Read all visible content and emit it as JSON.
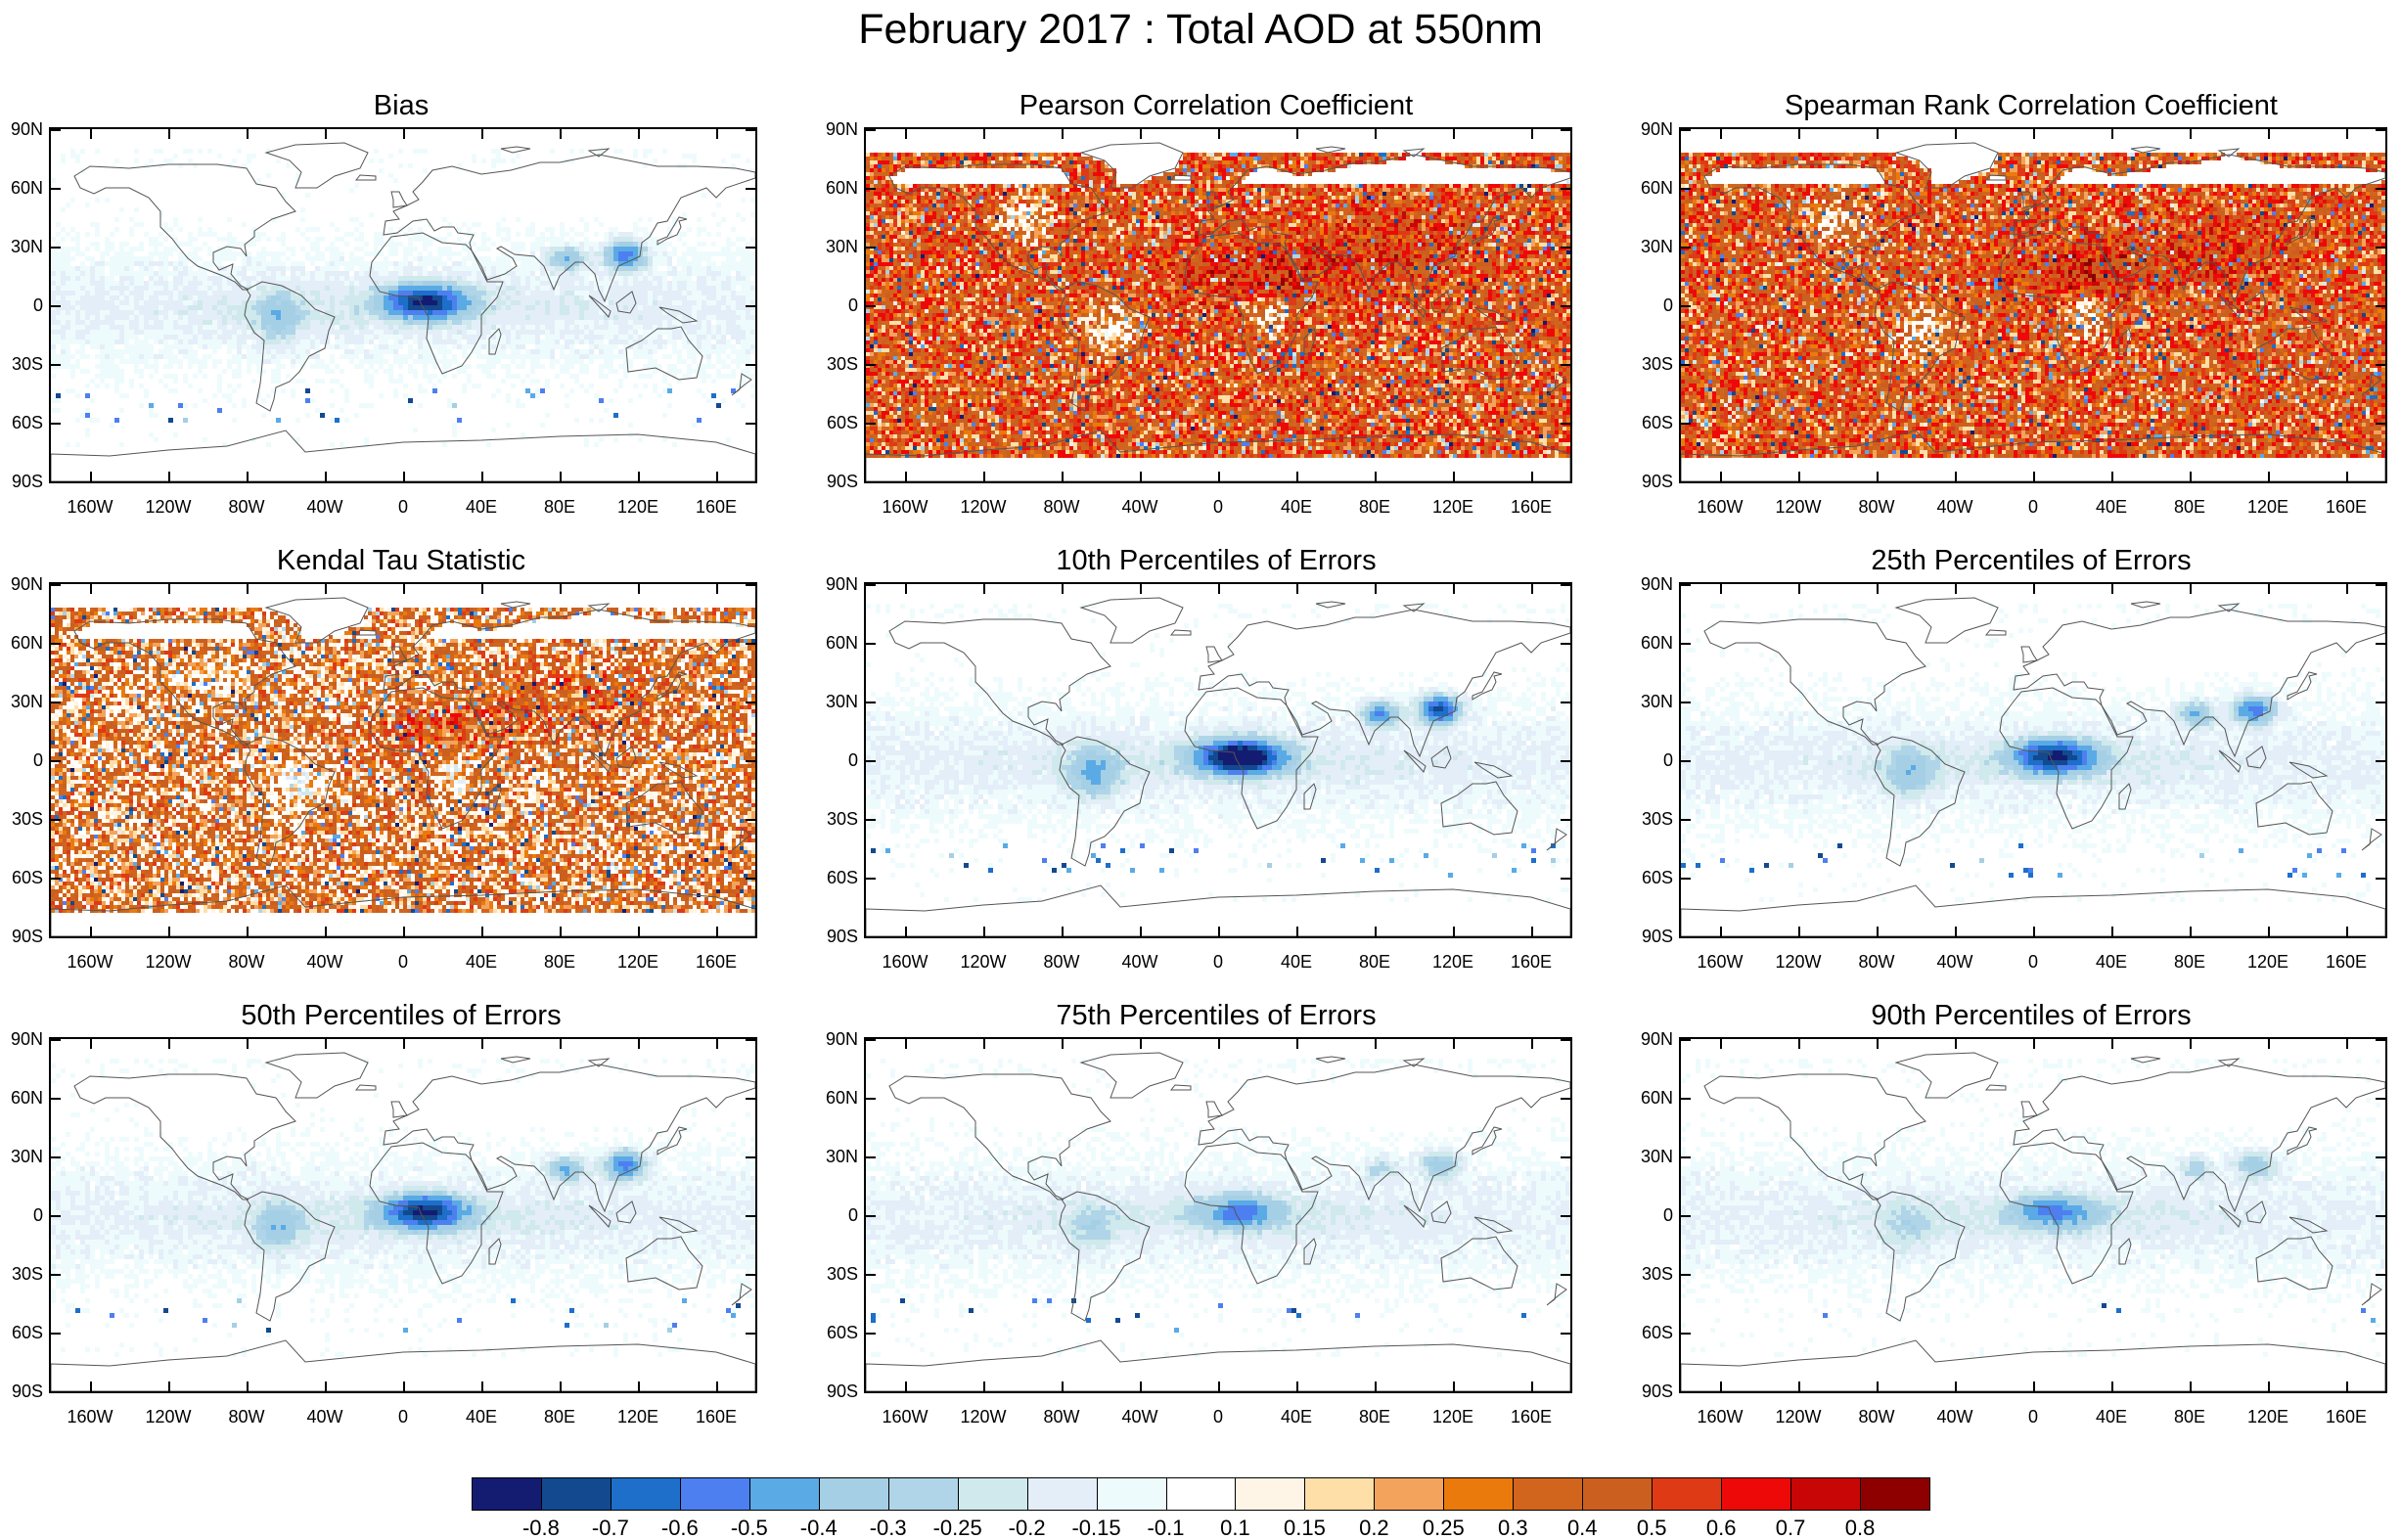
{
  "title": "February 2017 : Total AOD at 550nm",
  "lat_labels": [
    "90N",
    "60N",
    "30N",
    "0",
    "30S",
    "60S",
    "90S"
  ],
  "lon_labels": [
    "160W",
    "120W",
    "80W",
    "40W",
    "0",
    "40E",
    "80E",
    "120E",
    "160E"
  ],
  "panels": [
    {
      "title": "Bias",
      "type": "error"
    },
    {
      "title": "Pearson Correlation Coefficient",
      "type": "corr"
    },
    {
      "title": "Spearman Rank Correlation Coefficient",
      "type": "corr"
    },
    {
      "title": "Kendal Tau Statistic",
      "type": "tau"
    },
    {
      "title": "10th Percentiles of Errors",
      "type": "error_strong"
    },
    {
      "title": "25th Percentiles of Errors",
      "type": "error"
    },
    {
      "title": "50th Percentiles of Errors",
      "type": "error"
    },
    {
      "title": "75th Percentiles of Errors",
      "type": "error_weak"
    },
    {
      "title": "90th Percentiles of Errors",
      "type": "error_weak"
    }
  ],
  "colorbar": {
    "colors": [
      "#141c72",
      "#13498e",
      "#1d6fc9",
      "#4e7ff0",
      "#5aaae6",
      "#a5cfe4",
      "#b0d5e8",
      "#cfe9ec",
      "#e4eef8",
      "#eefbfd",
      "#ffffff",
      "#fff5e6",
      "#fedfa8",
      "#f4a35c",
      "#ea7a0c",
      "#d2651d",
      "#ca5f1f",
      "#df3a16",
      "#ee0909",
      "#c80606",
      "#8e0000"
    ],
    "labels": [
      "-0.8",
      "-0.7",
      "-0.6",
      "-0.5",
      "-0.4",
      "-0.3",
      "-0.25",
      "-0.2",
      "-0.15",
      "-0.1",
      "0.1",
      "0.15",
      "0.2",
      "0.25",
      "0.3",
      "0.4",
      "0.5",
      "0.6",
      "0.7",
      "0.8"
    ]
  }
}
